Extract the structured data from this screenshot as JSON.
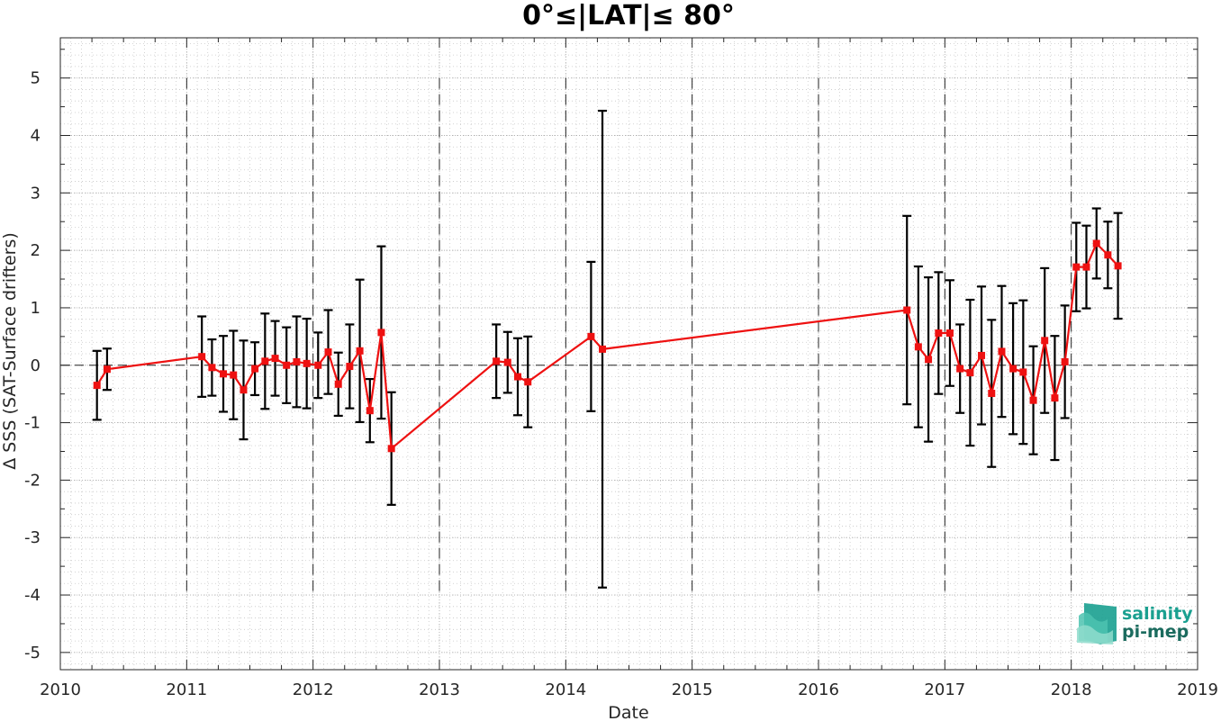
{
  "chart_data": {
    "type": "line",
    "title": "0°≤|LAT|≤ 80°",
    "xlabel": "Date",
    "ylabel": "Δ SSS (SAT-Surface drifters)",
    "xlim": [
      2010,
      2019
    ],
    "ylim": [
      -5.3,
      5.7
    ],
    "xticks": [
      2010,
      2011,
      2012,
      2013,
      2014,
      2015,
      2016,
      2017,
      2018,
      2019
    ],
    "yticks": [
      -5,
      -4,
      -3,
      -2,
      -1,
      0,
      1,
      2,
      3,
      4,
      5
    ],
    "grid": true,
    "minor_grid": true,
    "reference_line_y": 0,
    "year_dividers": {
      "x": [
        2011,
        2012,
        2013,
        2014,
        2015,
        2016,
        2017,
        2018
      ],
      "y_range": [
        -4,
        5
      ]
    },
    "colors": {
      "line": "#ee1111",
      "marker": "#ee1111",
      "errorbar": "#000000",
      "grid": "#c8c8c8",
      "logo": "#1aa090"
    },
    "series": [
      {
        "points": [
          {
            "x": 2010.29,
            "y": -0.35,
            "err": 0.6
          },
          {
            "x": 2010.37,
            "y": -0.07,
            "err": 0.36
          },
          {
            "x": 2011.12,
            "y": 0.15,
            "err": 0.7
          },
          {
            "x": 2011.2,
            "y": -0.04,
            "err": 0.49
          },
          {
            "x": 2011.29,
            "y": -0.15,
            "err": 0.66
          },
          {
            "x": 2011.37,
            "y": -0.17,
            "err": 0.77
          },
          {
            "x": 2011.45,
            "y": -0.43,
            "err": 0.86
          },
          {
            "x": 2011.54,
            "y": -0.06,
            "err": 0.46
          },
          {
            "x": 2011.62,
            "y": 0.07,
            "err": 0.83
          },
          {
            "x": 2011.7,
            "y": 0.12,
            "err": 0.65
          },
          {
            "x": 2011.79,
            "y": 0.0,
            "err": 0.66
          },
          {
            "x": 2011.87,
            "y": 0.06,
            "err": 0.79
          },
          {
            "x": 2011.95,
            "y": 0.03,
            "err": 0.78
          },
          {
            "x": 2012.04,
            "y": 0.0,
            "err": 0.57
          },
          {
            "x": 2012.12,
            "y": 0.23,
            "err": 0.73
          },
          {
            "x": 2012.2,
            "y": -0.33,
            "err": 0.55
          },
          {
            "x": 2012.29,
            "y": -0.02,
            "err": 0.73
          },
          {
            "x": 2012.37,
            "y": 0.25,
            "err": 1.24
          },
          {
            "x": 2012.45,
            "y": -0.79,
            "err": 0.55
          },
          {
            "x": 2012.54,
            "y": 0.57,
            "err": 1.5
          },
          {
            "x": 2012.62,
            "y": -1.45,
            "err": 0.98
          },
          {
            "x": 2013.45,
            "y": 0.07,
            "err": 0.64
          },
          {
            "x": 2013.54,
            "y": 0.05,
            "err": 0.53
          },
          {
            "x": 2013.62,
            "y": -0.2,
            "err": 0.67
          },
          {
            "x": 2013.7,
            "y": -0.29,
            "err": 0.79
          },
          {
            "x": 2014.2,
            "y": 0.5,
            "err": 1.3
          },
          {
            "x": 2014.29,
            "y": 0.28,
            "err": 4.15
          },
          {
            "x": 2016.7,
            "y": 0.96,
            "err": 1.64
          },
          {
            "x": 2016.79,
            "y": 0.32,
            "err": 1.4
          },
          {
            "x": 2016.87,
            "y": 0.1,
            "err": 1.43
          },
          {
            "x": 2016.95,
            "y": 0.56,
            "err": 1.06
          },
          {
            "x": 2017.04,
            "y": 0.56,
            "err": 0.92
          },
          {
            "x": 2017.12,
            "y": -0.06,
            "err": 0.77
          },
          {
            "x": 2017.2,
            "y": -0.13,
            "err": 1.27
          },
          {
            "x": 2017.29,
            "y": 0.17,
            "err": 1.2
          },
          {
            "x": 2017.37,
            "y": -0.49,
            "err": 1.28
          },
          {
            "x": 2017.45,
            "y": 0.24,
            "err": 1.14
          },
          {
            "x": 2017.54,
            "y": -0.06,
            "err": 1.14
          },
          {
            "x": 2017.62,
            "y": -0.12,
            "err": 1.25
          },
          {
            "x": 2017.7,
            "y": -0.61,
            "err": 0.94
          },
          {
            "x": 2017.79,
            "y": 0.43,
            "err": 1.26
          },
          {
            "x": 2017.87,
            "y": -0.57,
            "err": 1.08
          },
          {
            "x": 2017.95,
            "y": 0.06,
            "err": 0.98
          },
          {
            "x": 2018.04,
            "y": 1.71,
            "err": 0.77
          },
          {
            "x": 2018.12,
            "y": 1.71,
            "err": 0.72
          },
          {
            "x": 2018.2,
            "y": 2.12,
            "err": 0.61
          },
          {
            "x": 2018.29,
            "y": 1.92,
            "err": 0.58
          },
          {
            "x": 2018.37,
            "y": 1.73,
            "err": 0.92
          }
        ]
      }
    ]
  },
  "logo": {
    "line1": "salinity",
    "line2": "pi-mep"
  }
}
